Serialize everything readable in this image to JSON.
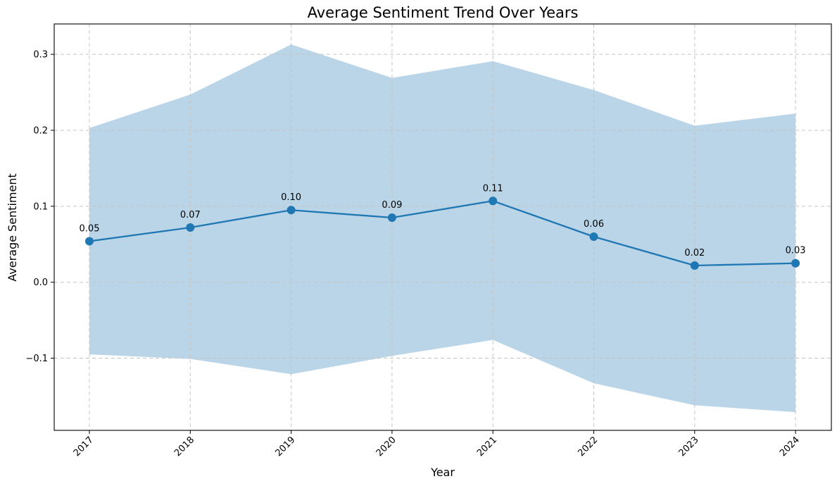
{
  "chart_data": {
    "type": "line",
    "title": "Average Sentiment Trend Over Years",
    "xlabel": "Year",
    "ylabel": "Average Sentiment",
    "categories": [
      "2017",
      "2018",
      "2019",
      "2020",
      "2021",
      "2022",
      "2023",
      "2024"
    ],
    "series": [
      {
        "values": [
          0.054,
          0.072,
          0.095,
          0.085,
          0.107,
          0.06,
          0.022,
          0.025
        ],
        "data_labels": [
          "0.05",
          "0.07",
          "0.10",
          "0.09",
          "0.11",
          "0.06",
          "0.02",
          "0.03"
        ],
        "color": "#1f77b4"
      }
    ],
    "band": {
      "upper": [
        0.203,
        0.247,
        0.313,
        0.269,
        0.291,
        0.253,
        0.206,
        0.222
      ],
      "lower": [
        -0.095,
        -0.101,
        -0.121,
        -0.097,
        -0.076,
        -0.133,
        -0.162,
        -0.171
      ],
      "color": "#bad5e7"
    },
    "ylim": [
      -0.195,
      0.34
    ],
    "yticks": [
      -0.1,
      0.0,
      0.1,
      0.2,
      0.3
    ],
    "ytick_labels": [
      "−0.1",
      "0.0",
      "0.1",
      "0.2",
      "0.3"
    ],
    "grid": true,
    "legend": "none"
  }
}
